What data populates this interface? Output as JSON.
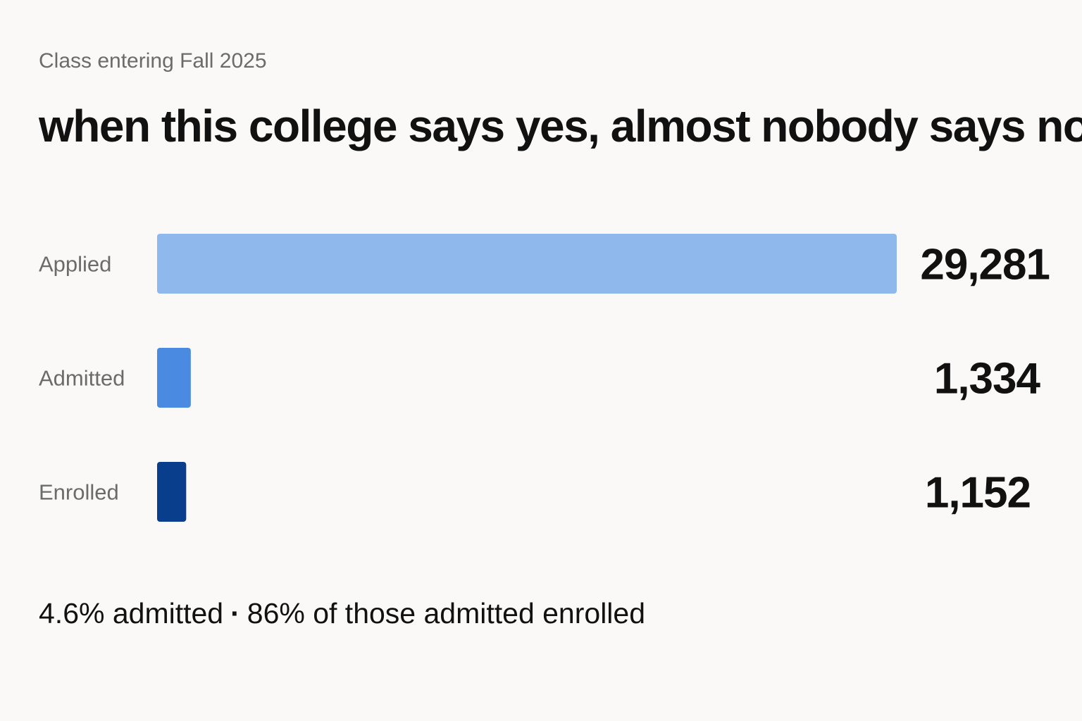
{
  "header": {
    "subtitle": "Class entering Fall 2025",
    "title": "when this college says yes, almost nobody says no"
  },
  "chart_data": {
    "type": "bar",
    "orientation": "horizontal",
    "categories": [
      "Applied",
      "Admitted",
      "Enrolled"
    ],
    "values": [
      29281,
      1334,
      1152
    ],
    "value_labels": [
      "29,281",
      "1,334",
      "1,152"
    ],
    "colors": [
      "#8fb8ec",
      "#4a8ae0",
      "#083e8c"
    ],
    "xlim": [
      0,
      29281
    ],
    "grid": false,
    "legend": "none"
  },
  "footnote": {
    "admit_rate": "4.6% admitted",
    "separator": "·",
    "yield_rate": "86% of those admitted enrolled"
  }
}
